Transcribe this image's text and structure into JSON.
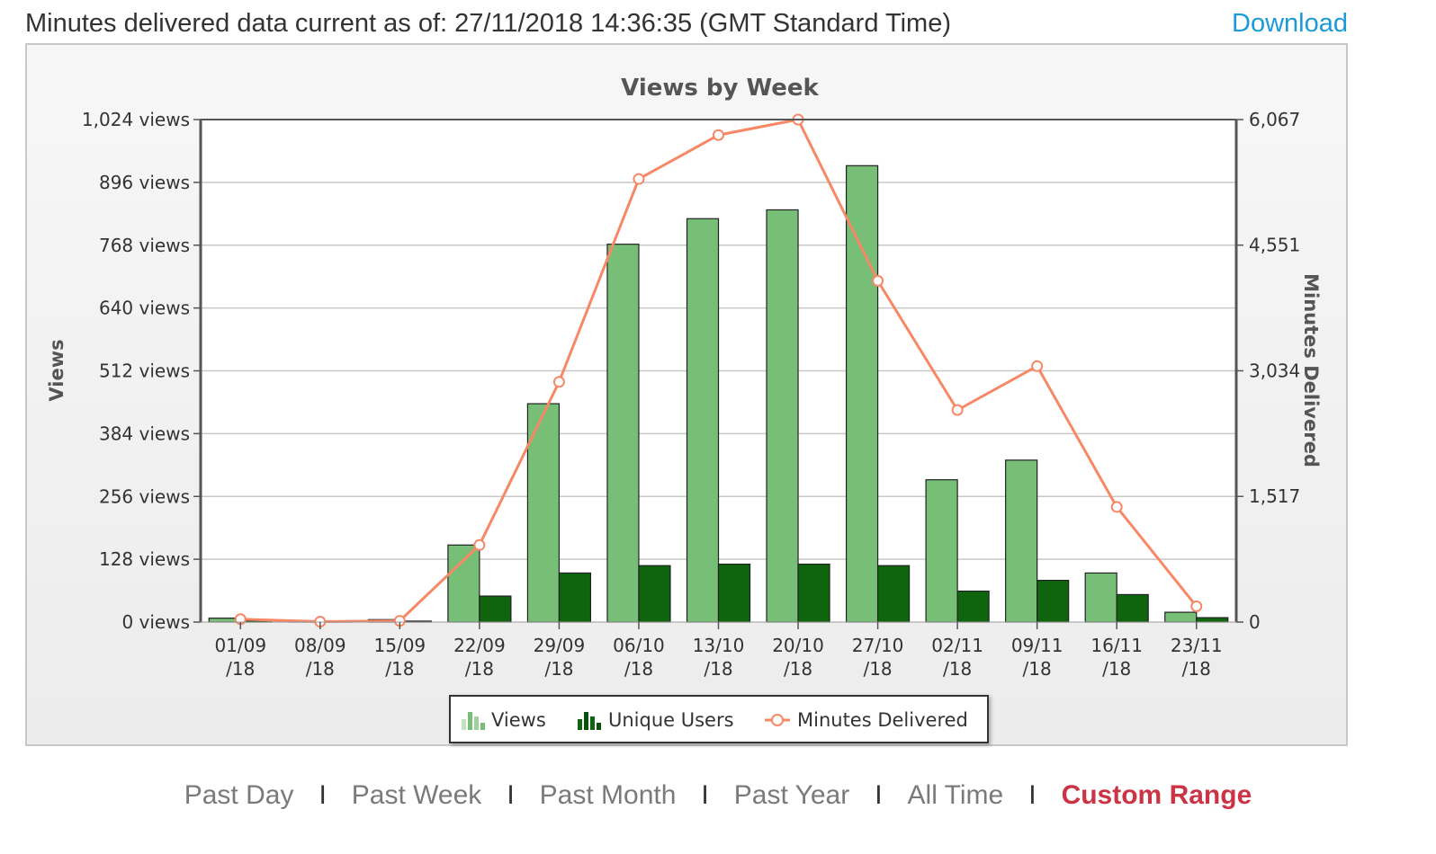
{
  "header": {
    "status_text": "Minutes delivered data current as of: 27/11/2018 14:36:35 (GMT Standard Time)",
    "download_label": "Download"
  },
  "nav": {
    "items": [
      {
        "label": "Past Day",
        "active": false
      },
      {
        "label": "Past Week",
        "active": false
      },
      {
        "label": "Past Month",
        "active": false
      },
      {
        "label": "Past Year",
        "active": false
      },
      {
        "label": "All Time",
        "active": false
      },
      {
        "label": "Custom Range",
        "active": true
      }
    ],
    "separator": "I"
  },
  "colors": {
    "views": "#77bf77",
    "unique_users": "#0e650e",
    "minutes": "#f78866",
    "active_nav": "#cc3344",
    "link": "#1a9bd7"
  },
  "chart_data": {
    "type": "bar",
    "title": "Views by Week",
    "ylabel": "Views",
    "y2label": "Minutes Delivered",
    "categories": [
      [
        "01/09",
        "/18"
      ],
      [
        "08/09",
        "/18"
      ],
      [
        "15/09",
        "/18"
      ],
      [
        "22/09",
        "/18"
      ],
      [
        "29/09",
        "/18"
      ],
      [
        "06/10",
        "/18"
      ],
      [
        "13/10",
        "/18"
      ],
      [
        "20/10",
        "/18"
      ],
      [
        "27/10",
        "/18"
      ],
      [
        "02/11",
        "/18"
      ],
      [
        "09/11",
        "/18"
      ],
      [
        "16/11",
        "/18"
      ],
      [
        "23/11",
        "/18"
      ]
    ],
    "ylim": [
      0,
      1024
    ],
    "y_ticks": [
      0,
      128,
      256,
      384,
      512,
      640,
      768,
      896,
      1024
    ],
    "y_tick_labels": [
      "0 views",
      "128 views",
      "256 views",
      "384 views",
      "512 views",
      "640 views",
      "768 views",
      "896 views",
      "1,024 views"
    ],
    "y2lim": [
      0,
      6067
    ],
    "y2_ticks": [
      0,
      1517,
      3034,
      4551,
      6067
    ],
    "y2_tick_labels": [
      "0",
      "1,517",
      "3,034",
      "4,551",
      "6,067"
    ],
    "grid": true,
    "legend_position": "bottom",
    "series": [
      {
        "name": "Views",
        "type": "bar",
        "axis": "left",
        "values": [
          8,
          2,
          5,
          157,
          445,
          770,
          822,
          840,
          930,
          290,
          330,
          100,
          20
        ]
      },
      {
        "name": "Unique Users",
        "type": "bar",
        "axis": "left",
        "values": [
          3,
          1,
          2,
          53,
          100,
          115,
          118,
          118,
          115,
          63,
          85,
          56,
          9
        ]
      },
      {
        "name": "Minutes Delivered",
        "type": "line",
        "axis": "right",
        "values": [
          35,
          5,
          15,
          930,
          2900,
          5350,
          5880,
          6067,
          4120,
          2560,
          3090,
          1390,
          190
        ]
      }
    ]
  }
}
